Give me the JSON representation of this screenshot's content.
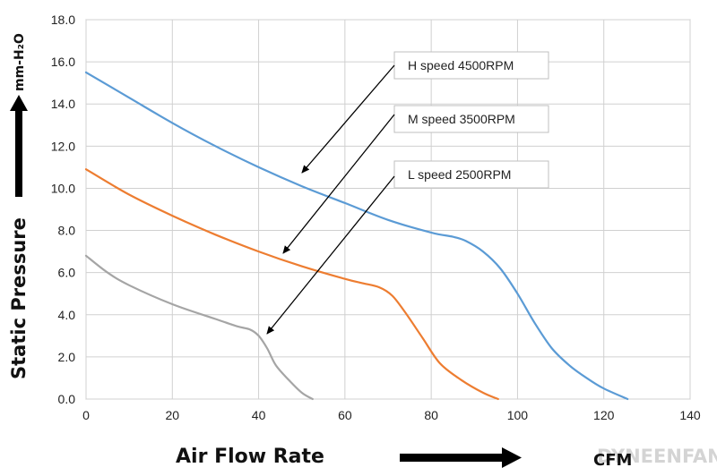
{
  "chart_data": {
    "type": "line",
    "xlabel": "Air  Flow  Rate",
    "ylabel": "Static   Pressure",
    "yunit": "mm-H₂O",
    "xunit": "CFM",
    "xlim": [
      0,
      140
    ],
    "ylim": [
      0,
      18
    ],
    "xticks": [
      0,
      20,
      40,
      60,
      80,
      100,
      120,
      140
    ],
    "xtick_labels": [
      "0",
      "20",
      "40",
      "60",
      "80",
      "100",
      "120",
      "140"
    ],
    "yticks": [
      0,
      2,
      4,
      6,
      8,
      10,
      12,
      14,
      16,
      18
    ],
    "ytick_labels": [
      "0.0",
      "2.0",
      "4.0",
      "6.0",
      "8.0",
      "10.0",
      "12.0",
      "14.0",
      "16.0",
      "18.0"
    ],
    "grid": true,
    "series": [
      {
        "name": "H speed 4500RPM",
        "color": "#5b9bd5",
        "x": [
          0,
          10,
          20,
          30,
          40,
          50,
          60,
          70,
          80,
          85,
          88,
          92,
          96,
          100,
          104,
          108,
          112,
          116,
          120,
          125.5
        ],
        "y": [
          15.5,
          14.3,
          13.1,
          12.0,
          11.0,
          10.1,
          9.3,
          8.5,
          7.9,
          7.7,
          7.5,
          7.0,
          6.2,
          5.0,
          3.6,
          2.4,
          1.6,
          1.0,
          0.5,
          0.0
        ]
      },
      {
        "name": "M speed 3500RPM",
        "color": "#ed7d31",
        "x": [
          0,
          10,
          20,
          30,
          40,
          50,
          60,
          64,
          68,
          71,
          74,
          78,
          82,
          87,
          92,
          95.5
        ],
        "y": [
          10.9,
          9.7,
          8.7,
          7.8,
          7.0,
          6.3,
          5.7,
          5.5,
          5.3,
          4.9,
          4.1,
          2.9,
          1.7,
          0.9,
          0.3,
          0.0
        ]
      },
      {
        "name": "L speed 2500RPM",
        "color": "#a5a5a5",
        "x": [
          0,
          5,
          10,
          20,
          30,
          35,
          38,
          40,
          42,
          44,
          47,
          50,
          52.5
        ],
        "y": [
          6.8,
          6.0,
          5.4,
          4.5,
          3.8,
          3.45,
          3.3,
          3.0,
          2.4,
          1.6,
          0.9,
          0.3,
          0.0
        ]
      }
    ],
    "annotations": [
      {
        "text": "H  speed  4500RPM",
        "series": "H speed 4500RPM"
      },
      {
        "text": "M  speed  3500RPM",
        "series": "M speed 3500RPM"
      },
      {
        "text": "L  speed  2500RPM",
        "series": "L speed 2500RPM"
      }
    ]
  },
  "watermark": "DYNEENFAN"
}
